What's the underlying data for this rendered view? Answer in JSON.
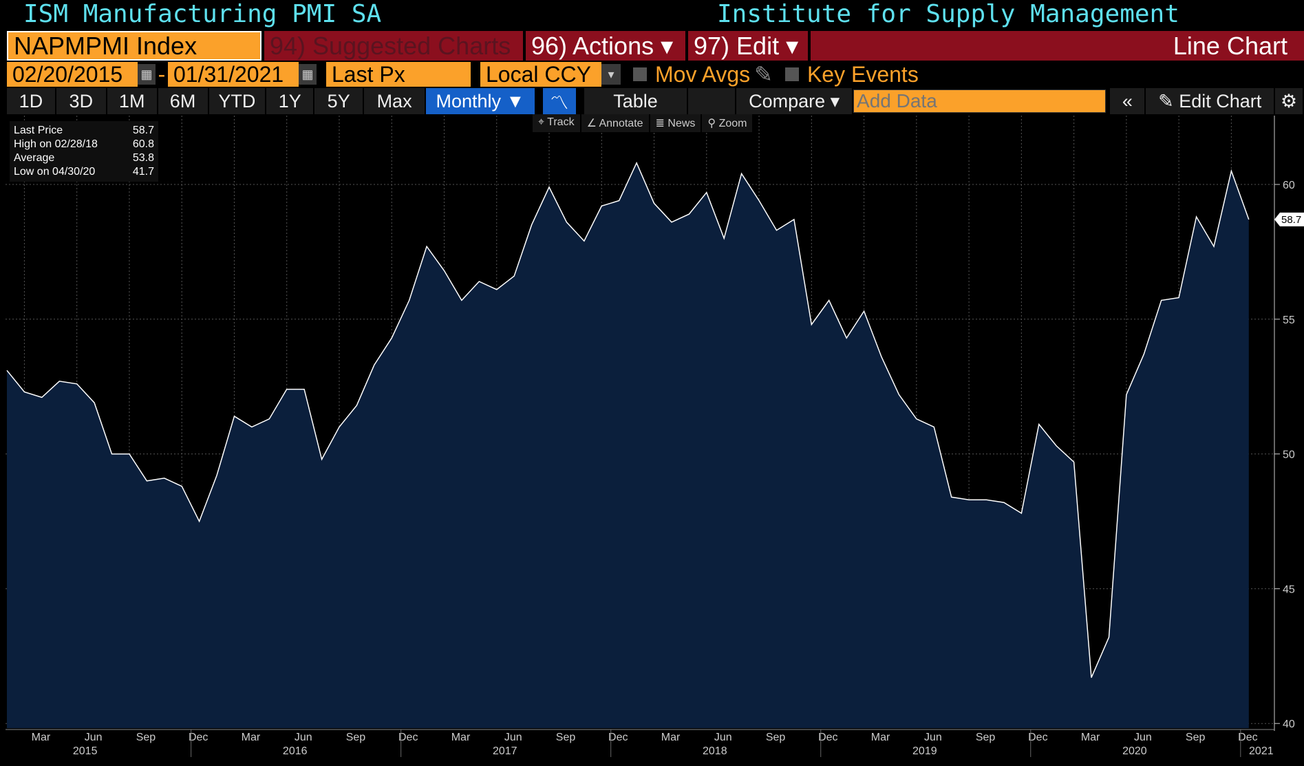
{
  "header": {
    "title": "ISM Manufacturing PMI SA",
    "source": "Institute for Supply Management"
  },
  "toolbar": {
    "ticker": "NAPMPMI Index",
    "suggested": "94) Suggested Charts",
    "actions": "96) Actions ▾",
    "edit": "97) Edit ▾",
    "chart_type": "Line Chart"
  },
  "controls": {
    "start_date": "02/20/2015",
    "end_date": "01/31/2021",
    "dash": "-",
    "field": "Last Px",
    "currency": "Local CCY",
    "mov_avgs": "Mov Avgs",
    "key_events": "Key Events"
  },
  "periods": [
    "1D",
    "3D",
    "1M",
    "6M",
    "YTD",
    "1Y",
    "5Y",
    "Max"
  ],
  "frequency": "Monthly ▼",
  "table_label": "Table",
  "compare_label": "Compare ▾",
  "add_data_placeholder": "Add Data",
  "edit_chart_label": "Edit Chart",
  "chart_tools": [
    "⌖ Track",
    "∠ Annotate",
    "≣ News",
    "⚲ Zoom"
  ],
  "legend": [
    {
      "label": "Last Price",
      "value": "58.7"
    },
    {
      "label": "High on 02/28/18",
      "value": "60.8"
    },
    {
      "label": "Average",
      "value": "53.8"
    },
    {
      "label": "Low on 04/30/20",
      "value": "41.7"
    }
  ],
  "colors": {
    "accent": "#fba12a",
    "bar": "#8b0f1e",
    "fill": "#0b1f3c",
    "line": "#ffffff",
    "title": "#5ee0ee"
  },
  "chart_data": {
    "type": "area",
    "title": "ISM Manufacturing PMI SA",
    "start": "2015-02",
    "frequency": "monthly",
    "values": [
      53.1,
      52.3,
      52.1,
      52.7,
      52.6,
      51.9,
      50.0,
      50.0,
      49.0,
      49.1,
      48.8,
      47.5,
      49.2,
      51.4,
      51.0,
      51.3,
      52.4,
      52.4,
      49.8,
      51.0,
      51.8,
      53.3,
      54.3,
      55.7,
      57.7,
      56.8,
      55.7,
      56.4,
      56.1,
      56.6,
      58.5,
      59.9,
      58.6,
      57.9,
      59.2,
      59.4,
      60.8,
      59.3,
      58.6,
      58.9,
      59.7,
      58.0,
      60.4,
      59.4,
      58.3,
      58.7,
      54.8,
      55.7,
      54.3,
      55.3,
      53.6,
      52.2,
      51.3,
      51.0,
      48.4,
      48.3,
      48.3,
      48.2,
      47.8,
      51.1,
      50.3,
      49.7,
      41.7,
      43.2,
      52.2,
      53.7,
      55.7,
      55.8,
      58.8,
      57.7,
      60.5,
      58.7
    ],
    "ylim": [
      40,
      62
    ],
    "yticks": [
      40,
      45,
      50,
      55,
      60
    ],
    "last_value_label": "58.7",
    "xtick_months": [
      "Mar",
      "Jun",
      "Sep",
      "Dec"
    ],
    "years": [
      "2015",
      "2016",
      "2017",
      "2018",
      "2019",
      "2020",
      "2021"
    ],
    "grid": true
  }
}
